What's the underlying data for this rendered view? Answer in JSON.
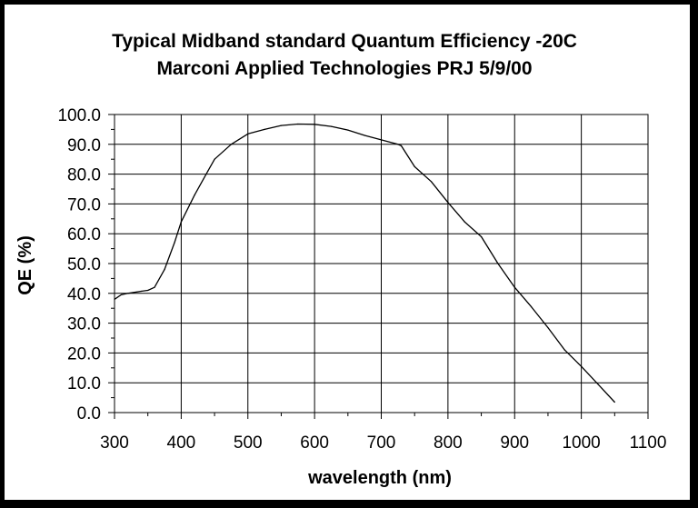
{
  "chart_data": {
    "type": "line",
    "title": "Typical Midband standard Quantum Efficiency -20C",
    "subtitle": "Marconi Applied Technologies  PRJ 5/9/00",
    "xlabel": "wavelength (nm)",
    "ylabel": "QE (%)",
    "xlim": [
      300,
      1100
    ],
    "ylim": [
      0,
      100
    ],
    "x_ticks": [
      300,
      400,
      500,
      600,
      700,
      800,
      900,
      1000,
      1100
    ],
    "y_ticks": [
      0,
      10,
      20,
      30,
      40,
      50,
      60,
      70,
      80,
      90,
      100
    ],
    "x_tick_labels": [
      "300",
      "400",
      "500",
      "600",
      "700",
      "800",
      "900",
      "1000",
      "1100"
    ],
    "y_tick_labels": [
      "0.0",
      "10.0",
      "20.0",
      "30.0",
      "40.0",
      "50.0",
      "60.0",
      "70.0",
      "80.0",
      "90.0",
      "100.0"
    ],
    "grid": true,
    "legend": "none",
    "line_color": "#000000",
    "series": [
      {
        "x": [
          300,
          310,
          320,
          340,
          350,
          360,
          375,
          390,
          400,
          420,
          440,
          450,
          475,
          500,
          525,
          550,
          575,
          600,
          625,
          650,
          675,
          700,
          725,
          730,
          750,
          775,
          800,
          825,
          850,
          875,
          900,
          925,
          950,
          975,
          1000,
          1025,
          1050
        ],
        "y": [
          38,
          39.5,
          40,
          40.7,
          41,
          42,
          48,
          57,
          64,
          73,
          81,
          85,
          90,
          93.5,
          95,
          96.3,
          96.8,
          96.7,
          96,
          94.8,
          93,
          91.5,
          90,
          89.5,
          82.5,
          77.5,
          70.5,
          64,
          59,
          50,
          42,
          35.5,
          28.5,
          21,
          15.5,
          9.5,
          3.5
        ]
      }
    ]
  }
}
